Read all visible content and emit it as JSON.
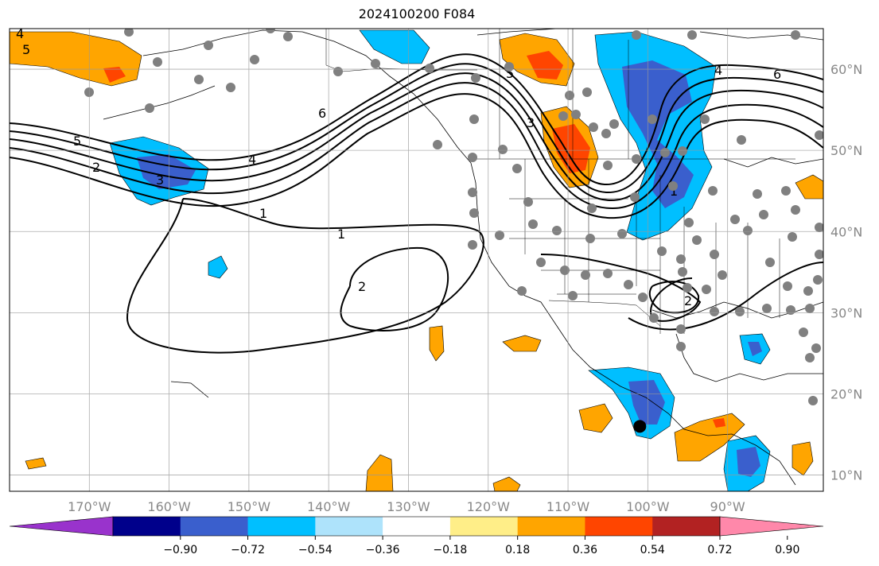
{
  "title": "2024100200 F084",
  "map": {
    "projection": "PlateCarree",
    "lon_range": [
      -180,
      -78
    ],
    "lat_range": [
      8,
      65
    ],
    "lat_ticks": [
      {
        "value": 10,
        "label": "10°N"
      },
      {
        "value": 20,
        "label": "20°N"
      },
      {
        "value": 30,
        "label": "30°N"
      },
      {
        "value": 40,
        "label": "40°N"
      },
      {
        "value": 50,
        "label": "50°N"
      },
      {
        "value": 60,
        "label": "60°N"
      }
    ],
    "lon_ticks": [
      {
        "value": -170,
        "label": "170°W"
      },
      {
        "value": -160,
        "label": "160°W"
      },
      {
        "value": -150,
        "label": "150°W"
      },
      {
        "value": -140,
        "label": "140°W"
      },
      {
        "value": -130,
        "label": "130°W"
      },
      {
        "value": -120,
        "label": "120°W"
      },
      {
        "value": -110,
        "label": "110°W"
      },
      {
        "value": -100,
        "label": "100°W"
      },
      {
        "value": -90,
        "label": "90°W"
      }
    ],
    "contour_labels": [
      "1",
      "2",
      "3",
      "4",
      "5",
      "6"
    ],
    "marker": {
      "lon": -101,
      "lat": 16
    }
  },
  "colorbar": {
    "colors": [
      "#9933cc",
      "#00008b",
      "#3a5fcd",
      "#00bfff",
      "#aee3fb",
      "#ffffff",
      "#ffee88",
      "#ffa500",
      "#ff4500",
      "#b22222",
      "#ff88aa"
    ],
    "tick_labels": [
      "−0.90",
      "−0.72",
      "−0.54",
      "−0.36",
      "−0.18",
      "0.18",
      "0.36",
      "0.54",
      "0.72",
      "0.90"
    ]
  }
}
